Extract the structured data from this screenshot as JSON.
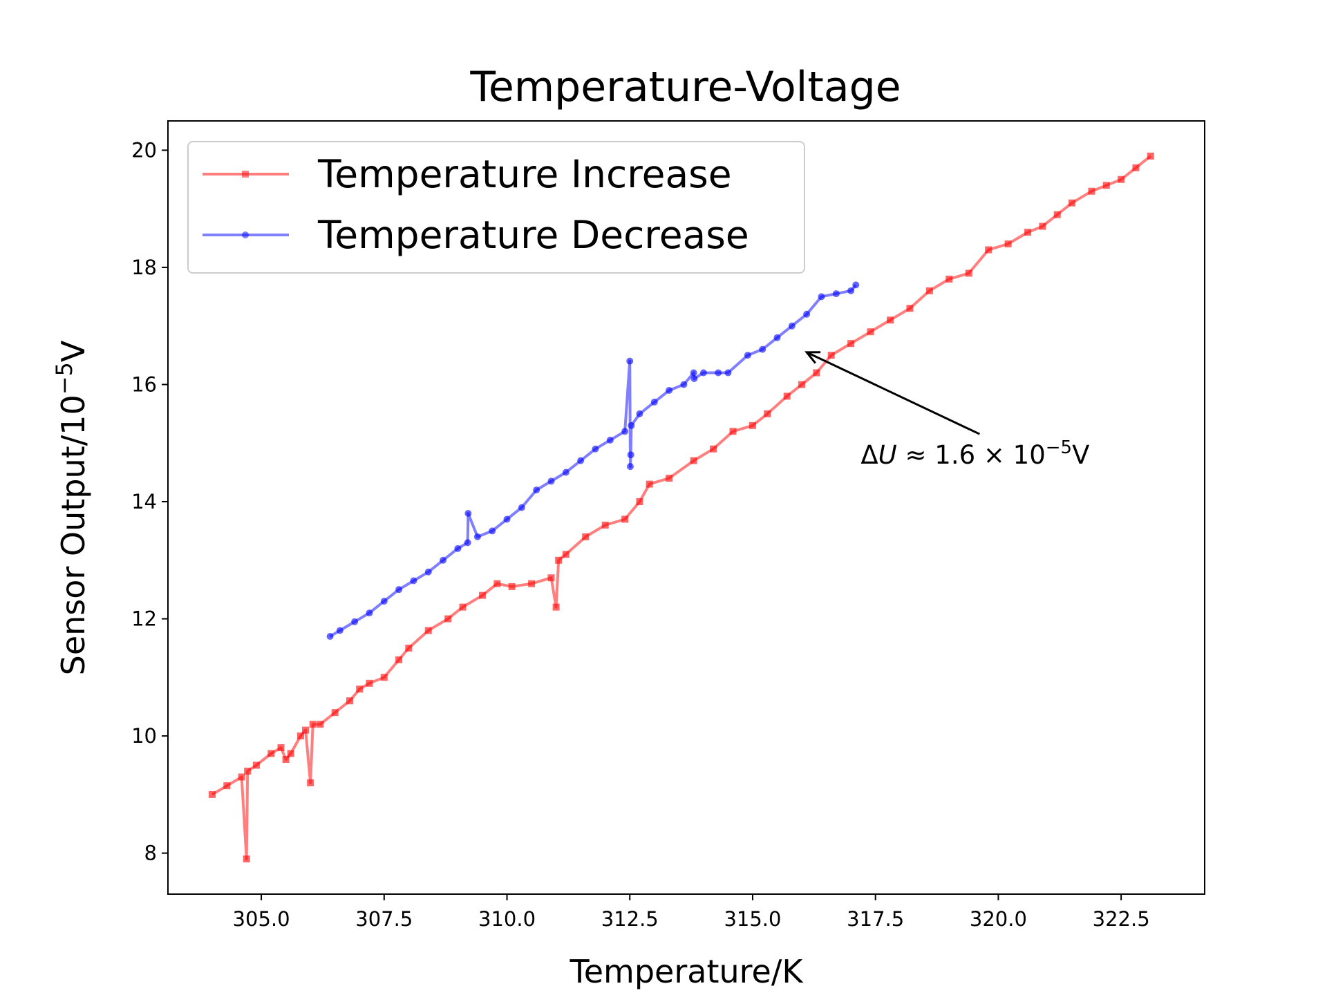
{
  "chart_data": {
    "type": "line",
    "title": "Temperature-Voltage",
    "xlabel": "Temperature/K",
    "ylabel_main": "Sensor Output/10",
    "ylabel_exp": "−5",
    "ylabel_unit": "V",
    "xlim": [
      303.1,
      324.2
    ],
    "ylim": [
      7.3,
      20.5
    ],
    "xticks": [
      305.0,
      307.5,
      310.0,
      312.5,
      315.0,
      317.5,
      320.0,
      322.5
    ],
    "xtick_labels": [
      "305.0",
      "307.5",
      "310.0",
      "312.5",
      "315.0",
      "317.5",
      "320.0",
      "322.5"
    ],
    "yticks": [
      8,
      10,
      12,
      14,
      16,
      18,
      20
    ],
    "ytick_labels": [
      "8",
      "10",
      "12",
      "14",
      "16",
      "18",
      "20"
    ],
    "legend_position": "top-left",
    "series": [
      {
        "name": "Temperature Increase",
        "color": "#ff0000",
        "marker": "square",
        "x": [
          304.0,
          304.3,
          304.6,
          304.7,
          304.72,
          304.9,
          305.2,
          305.4,
          305.5,
          305.6,
          305.8,
          305.9,
          306.0,
          306.05,
          306.2,
          306.5,
          306.8,
          307.0,
          307.2,
          307.5,
          307.8,
          308.0,
          308.4,
          308.8,
          309.1,
          309.5,
          309.8,
          310.1,
          310.5,
          310.9,
          311.0,
          311.05,
          311.2,
          311.6,
          312.0,
          312.4,
          312.7,
          312.9,
          313.3,
          313.8,
          314.2,
          314.6,
          315.0,
          315.3,
          315.7,
          316.0,
          316.3,
          316.6,
          317.0,
          317.4,
          317.8,
          318.2,
          318.6,
          319.0,
          319.4,
          319.8,
          320.2,
          320.6,
          320.9,
          321.2,
          321.5,
          321.9,
          322.2,
          322.5,
          322.8,
          323.1
        ],
        "y": [
          9.0,
          9.15,
          9.3,
          7.9,
          9.4,
          9.5,
          9.7,
          9.8,
          9.6,
          9.7,
          10.0,
          10.1,
          9.2,
          10.2,
          10.2,
          10.4,
          10.6,
          10.8,
          10.9,
          11.0,
          11.3,
          11.5,
          11.8,
          12.0,
          12.2,
          12.4,
          12.6,
          12.55,
          12.6,
          12.7,
          12.2,
          13.0,
          13.1,
          13.4,
          13.6,
          13.7,
          14.0,
          14.3,
          14.4,
          14.7,
          14.9,
          15.2,
          15.3,
          15.5,
          15.8,
          16.0,
          16.2,
          16.5,
          16.7,
          16.9,
          17.1,
          17.3,
          17.6,
          17.8,
          17.9,
          18.3,
          18.4,
          18.6,
          18.7,
          18.9,
          19.1,
          19.3,
          19.4,
          19.5,
          19.7,
          19.9
        ]
      },
      {
        "name": "Temperature Decrease",
        "color": "#0000ff",
        "marker": "circle",
        "x": [
          306.4,
          306.6,
          306.9,
          307.2,
          307.5,
          307.8,
          308.1,
          308.4,
          308.7,
          309.0,
          309.2,
          309.21,
          309.4,
          309.7,
          310.0,
          310.3,
          310.6,
          310.9,
          311.2,
          311.5,
          311.8,
          312.1,
          312.4,
          312.5,
          312.51,
          312.52,
          312.53,
          312.7,
          313.0,
          313.3,
          313.6,
          313.8,
          313.81,
          314.0,
          314.3,
          314.5,
          314.9,
          315.2,
          315.5,
          315.8,
          316.1,
          316.4,
          316.7,
          317.0,
          317.1
        ],
        "y": [
          11.7,
          11.8,
          11.95,
          12.1,
          12.3,
          12.5,
          12.65,
          12.8,
          13.0,
          13.2,
          13.3,
          13.8,
          13.4,
          13.5,
          13.7,
          13.9,
          14.2,
          14.35,
          14.5,
          14.7,
          14.9,
          15.05,
          15.2,
          16.4,
          14.6,
          14.8,
          15.3,
          15.5,
          15.7,
          15.9,
          16.0,
          16.2,
          16.1,
          16.2,
          16.2,
          16.2,
          16.5,
          16.6,
          16.8,
          17.0,
          17.2,
          17.5,
          17.55,
          17.6,
          17.7
        ]
      }
    ],
    "annotation": {
      "prefix": "Δ",
      "var": "U",
      "approx": " ≈ 1.6 × 10",
      "exp": "−5",
      "unit": "V",
      "xy": [
        316.1,
        16.55
      ],
      "xytext": [
        317.2,
        14.8
      ]
    }
  }
}
